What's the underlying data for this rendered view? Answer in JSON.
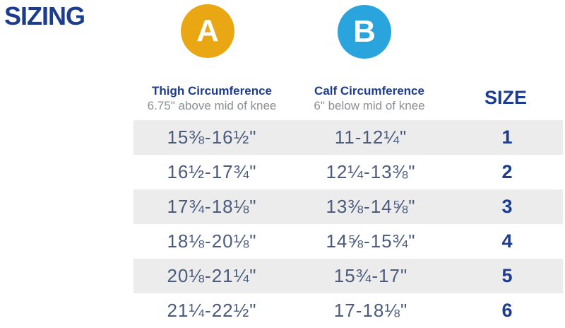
{
  "page": {
    "title": "SIZING"
  },
  "theme": {
    "navy": "#1c3c8e",
    "marker-a": "#E9A713",
    "marker-b": "#29A4DC",
    "row-shade": "#ececec",
    "value-text": "#4a5b7c",
    "subtitle-text": "#8c8e91"
  },
  "markers": {
    "a": {
      "label": "A",
      "color": "#E9A713"
    },
    "b": {
      "label": "B",
      "color": "#29A4DC"
    }
  },
  "columns": {
    "thigh": {
      "title": "Thigh Circumference",
      "subtitle": "6.75\" above mid of knee"
    },
    "calf": {
      "title": "Calf Circumference",
      "subtitle": "6\" below mid of knee"
    },
    "size": {
      "title": "SIZE"
    }
  },
  "table": {
    "rows": [
      {
        "thigh": "15⅜-16½\"",
        "calf": "11-12¼\"",
        "size": "1"
      },
      {
        "thigh": "16½-17¾\"",
        "calf": "12¼-13⅜\"",
        "size": "2"
      },
      {
        "thigh": "17¾-18⅛\"",
        "calf": "13⅜-14⅝\"",
        "size": "3"
      },
      {
        "thigh": "18⅛-20⅛\"",
        "calf": "14⅝-15¾\"",
        "size": "4"
      },
      {
        "thigh": "20⅛-21¼\"",
        "calf": "15¾-17\"",
        "size": "5"
      },
      {
        "thigh": "21¼-22½\"",
        "calf": "17-18⅛\"",
        "size": "6"
      }
    ]
  },
  "chart_data": {
    "type": "table",
    "title": "SIZING",
    "columns": [
      "Thigh Circumference (6.75\" above mid of knee)",
      "Calf Circumference (6\" below mid of knee)",
      "SIZE"
    ],
    "rows": [
      [
        "15⅜-16½\"",
        "11-12¼\"",
        "1"
      ],
      [
        "16½-17¾\"",
        "12¼-13⅜\"",
        "2"
      ],
      [
        "17¾-18⅛\"",
        "13⅜-14⅝\"",
        "3"
      ],
      [
        "18⅛-20⅛\"",
        "14⅝-15¾\"",
        "4"
      ],
      [
        "20⅛-21¼\"",
        "15¾-17\"",
        "5"
      ],
      [
        "21¼-22½\"",
        "17-18⅛\"",
        "6"
      ]
    ]
  }
}
